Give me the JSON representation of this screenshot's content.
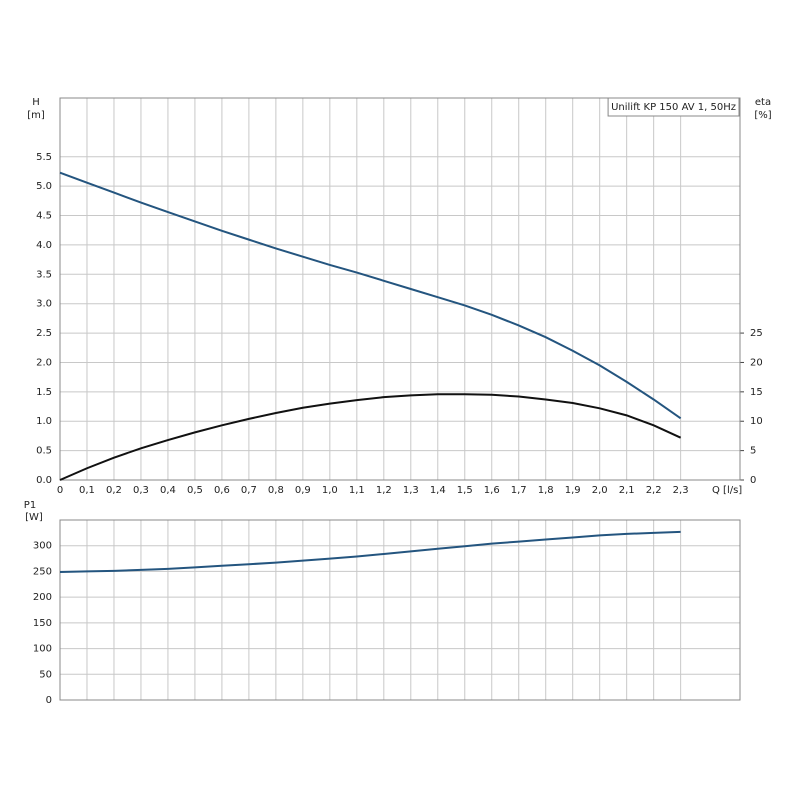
{
  "chart_data": [
    {
      "type": "line",
      "ylabel": "H",
      "yunit": "[m]",
      "y2label": "eta",
      "y2unit": "[%]",
      "annotation": "Unilift KP 150 AV 1, 50Hz",
      "xlabel": "Q [l/s]",
      "x": [
        0,
        0.1,
        0.2,
        0.3,
        0.4,
        0.5,
        0.6,
        0.7,
        0.8,
        0.9,
        1.0,
        1.1,
        1.2,
        1.3,
        1.4,
        1.5,
        1.6,
        1.7,
        1.8,
        1.9,
        2.0,
        2.1,
        2.2,
        2.3
      ],
      "xlim": [
        0,
        2.52
      ],
      "xticks": [
        0,
        {
          "value": 0.1,
          "label": "0,1"
        },
        {
          "value": 0.2,
          "label": "0,2"
        },
        {
          "value": 0.3,
          "label": "0,3"
        },
        {
          "value": 0.4,
          "label": "0,4"
        },
        {
          "value": 0.5,
          "label": "0,5"
        },
        {
          "value": 0.6,
          "label": "0,6"
        },
        {
          "value": 0.7,
          "label": "0,7"
        },
        {
          "value": 0.8,
          "label": "0,8"
        },
        {
          "value": 0.9,
          "label": "0,9"
        },
        {
          "value": 1.0,
          "label": "1,0"
        },
        {
          "value": 1.1,
          "label": "1,1"
        },
        {
          "value": 1.2,
          "label": "1,2"
        },
        {
          "value": 1.3,
          "label": "1,3"
        },
        {
          "value": 1.4,
          "label": "1,4"
        },
        {
          "value": 1.5,
          "label": "1,5"
        },
        {
          "value": 1.6,
          "label": "1,6"
        },
        {
          "value": 1.7,
          "label": "1,7"
        },
        {
          "value": 1.8,
          "label": "1,8"
        },
        {
          "value": 1.9,
          "label": "1,9"
        },
        {
          "value": 2.0,
          "label": "2,0"
        },
        {
          "value": 2.1,
          "label": "2,1"
        },
        {
          "value": 2.2,
          "label": "2,2"
        },
        {
          "value": 2.3,
          "label": "2,3"
        }
      ],
      "ylim": [
        0,
        6.5
      ],
      "yticks": [
        {
          "value": 0,
          "label": "0.0"
        },
        0.5,
        {
          "value": 1,
          "label": "1.0"
        },
        1.5,
        {
          "value": 2,
          "label": "2.0"
        },
        2.5,
        {
          "value": 3,
          "label": "3.0"
        },
        3.5,
        {
          "value": 4,
          "label": "4.0"
        },
        4.5,
        {
          "value": 5,
          "label": "5.0"
        },
        5.5
      ],
      "y2lim": [
        0,
        65
      ],
      "y2ticks": [
        0,
        5,
        10,
        15,
        20,
        25
      ],
      "grid": true,
      "series": [
        {
          "color": "#24557f",
          "values": [
            5.23,
            5.06,
            4.89,
            4.72,
            4.56,
            4.4,
            4.24,
            4.09,
            3.94,
            3.8,
            3.66,
            3.53,
            3.39,
            3.25,
            3.11,
            2.97,
            2.81,
            2.63,
            2.43,
            2.2,
            1.95,
            1.67,
            1.37,
            1.05
          ]
        },
        {
          "color": "#111111",
          "axis": "y2",
          "values": [
            0,
            2.0,
            3.8,
            5.4,
            6.8,
            8.1,
            9.3,
            10.4,
            11.4,
            12.3,
            13.0,
            13.6,
            14.1,
            14.4,
            14.6,
            14.6,
            14.5,
            14.2,
            13.7,
            13.1,
            12.2,
            11.0,
            9.3,
            7.2
          ]
        }
      ]
    },
    {
      "type": "line",
      "ylabel": "P1",
      "yunit": "[W]",
      "x": [
        0,
        0.1,
        0.2,
        0.3,
        0.4,
        0.5,
        0.6,
        0.7,
        0.8,
        0.9,
        1.0,
        1.1,
        1.2,
        1.3,
        1.4,
        1.5,
        1.6,
        1.7,
        1.8,
        1.9,
        2.0,
        2.1,
        2.2,
        2.3
      ],
      "xlim": [
        0,
        2.52
      ],
      "ylim": [
        0,
        350
      ],
      "yticks": [
        0,
        50,
        100,
        150,
        200,
        250,
        300
      ],
      "grid": true,
      "series": [
        {
          "color": "#24557f",
          "values": [
            249,
            250,
            251,
            253,
            255,
            258,
            261,
            264,
            267,
            271,
            275,
            279,
            284,
            289,
            294,
            299,
            304,
            308,
            312,
            316,
            320,
            323,
            325,
            327
          ]
        }
      ]
    }
  ]
}
